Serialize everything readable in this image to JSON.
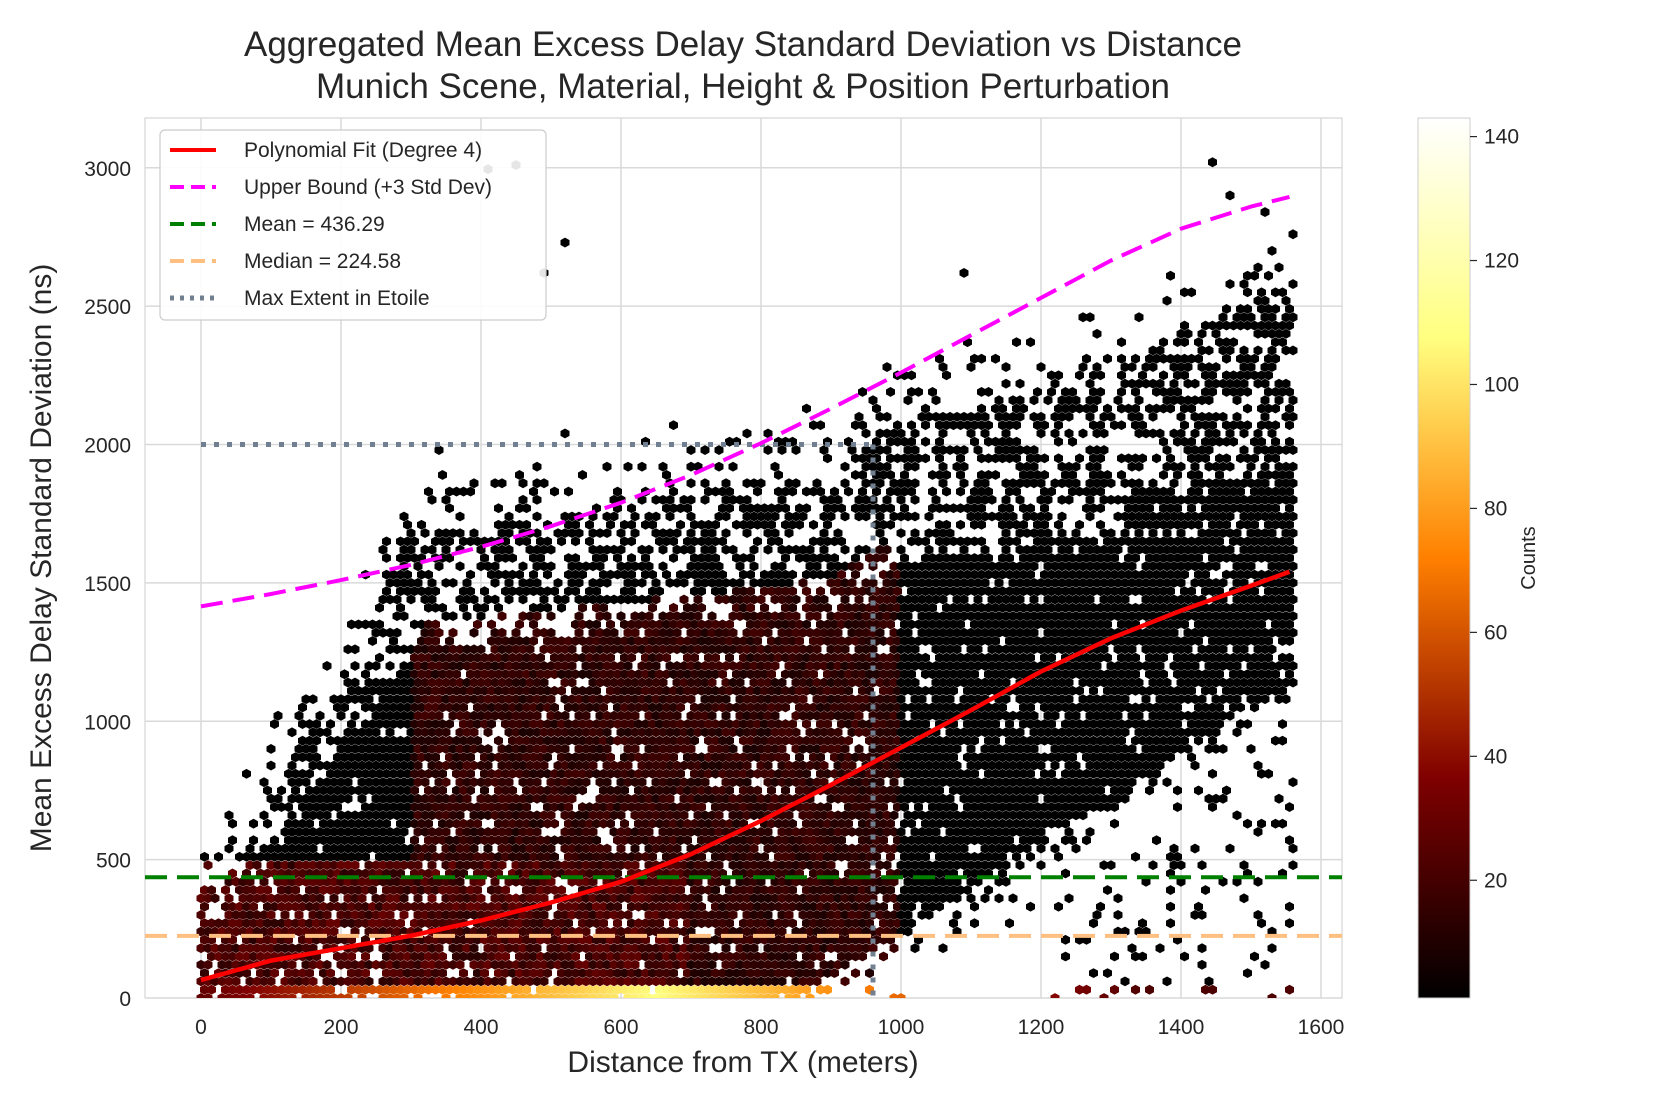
{
  "chart_data": {
    "type": "heatmap",
    "subtype": "hexbin",
    "title_line1": "Aggregated Mean Excess Delay Standard Deviation vs Distance",
    "title_line2": "Munich Scene, Material, Height & Position Perturbation",
    "xlabel": "Distance from TX (meters)",
    "ylabel": "Mean Excess Delay Standard Deviation (ns)",
    "xlim": [
      -80,
      1630
    ],
    "ylim": [
      0,
      3180
    ],
    "x_ticks": [
      0,
      200,
      400,
      600,
      800,
      1000,
      1200,
      1400,
      1600
    ],
    "y_ticks": [
      0,
      500,
      1000,
      1500,
      2000,
      2500,
      3000
    ],
    "grid": true,
    "legend_position": "top-left",
    "colorbar": {
      "label": "Counts",
      "colormap": "afmhot",
      "range": [
        1,
        143
      ],
      "ticks": [
        20,
        40,
        60,
        80,
        100,
        120,
        140
      ]
    },
    "legend": [
      {
        "label": "Polynomial Fit (Degree 4)",
        "color": "#ff0000",
        "style": "solid"
      },
      {
        "label": "Upper Bound (+3 Std Dev)",
        "color": "#ff00ff",
        "style": "dashed"
      },
      {
        "label": "Mean = 436.29",
        "color": "#008000",
        "style": "dashed"
      },
      {
        "label": "Median = 224.58",
        "color": "#ffbf80",
        "style": "dashed"
      },
      {
        "label": "Max Extent in Etoile",
        "color": "#708090",
        "style": "dotted"
      }
    ],
    "mean": 436.29,
    "median": 224.58,
    "max_extent": {
      "x": 960,
      "y": 2000
    },
    "polynomial_fit": {
      "x": [
        0,
        100,
        200,
        300,
        400,
        500,
        600,
        700,
        800,
        900,
        1000,
        1100,
        1200,
        1300,
        1400,
        1500,
        1555
      ],
      "y": [
        65,
        135,
        180,
        225,
        280,
        345,
        420,
        520,
        640,
        770,
        905,
        1040,
        1180,
        1300,
        1400,
        1490,
        1540
      ]
    },
    "upper_bound": {
      "x": [
        0,
        100,
        200,
        300,
        400,
        500,
        600,
        700,
        800,
        900,
        1000,
        1100,
        1200,
        1300,
        1400,
        1500,
        1555
      ],
      "y": [
        1415,
        1460,
        1510,
        1565,
        1630,
        1705,
        1790,
        1890,
        2005,
        2130,
        2260,
        2395,
        2530,
        2665,
        2780,
        2860,
        2895
      ]
    }
  }
}
